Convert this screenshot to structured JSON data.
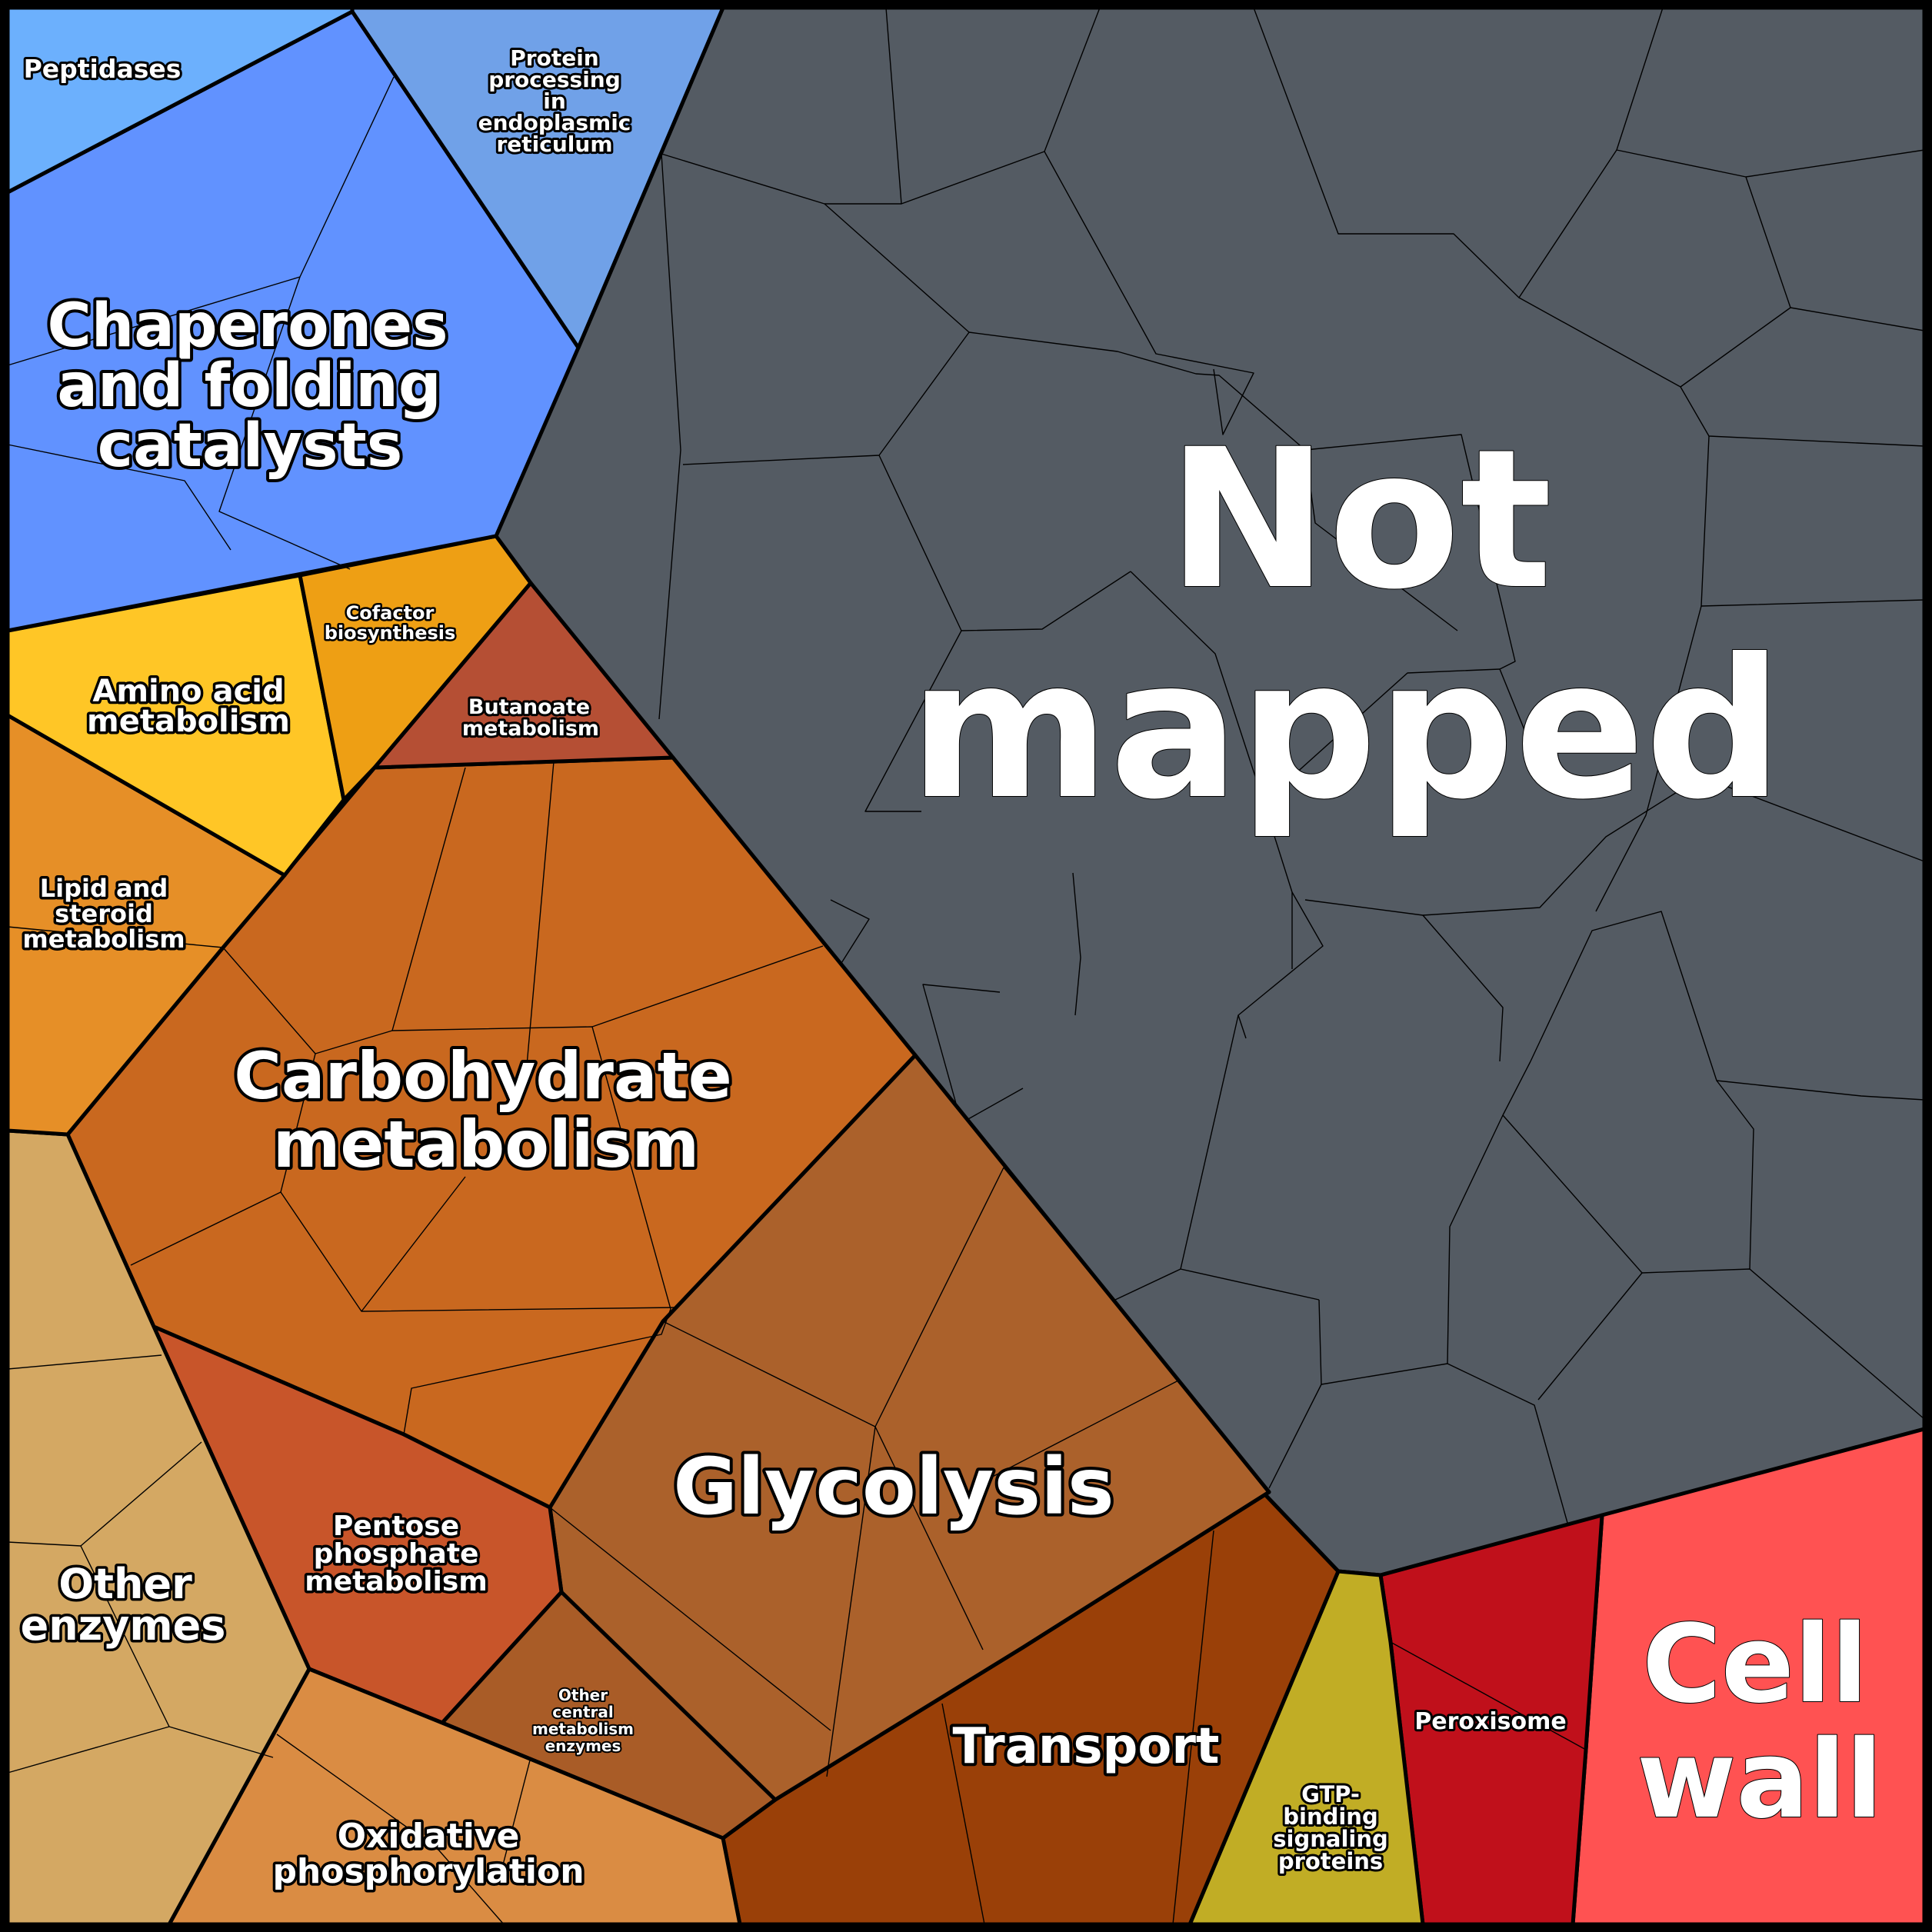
{
  "regions": [
    {
      "id": "not-mapped",
      "label": [
        "Not",
        "mapped"
      ],
      "color": "#545b63"
    },
    {
      "id": "cell-wall",
      "label": [
        "Cell",
        "wall"
      ],
      "color": "#ff5252"
    },
    {
      "id": "peroxisome",
      "label": [
        "Peroxisome"
      ],
      "color": "#c0101b"
    },
    {
      "id": "gtp-binding",
      "label": [
        "GTP-",
        "binding",
        "signaling",
        "proteins"
      ],
      "color": "#c1ad25"
    },
    {
      "id": "transport",
      "label": [
        "Transport"
      ],
      "color": "#9a4008"
    },
    {
      "id": "glycolysis",
      "label": [
        "Glycolysis"
      ],
      "color": "#ab612b"
    },
    {
      "id": "carbohydrate",
      "label": [
        "Carbohydrate",
        "metabolism"
      ],
      "color": "#c9681f"
    },
    {
      "id": "pentose",
      "label": [
        "Pentose",
        "phosphate",
        "metabolism"
      ],
      "color": "#c8552a"
    },
    {
      "id": "other-central",
      "label": [
        "Other",
        "central",
        "metabolism",
        "enzymes"
      ],
      "color": "#a95c27"
    },
    {
      "id": "oxidative",
      "label": [
        "Oxidative",
        "phosphorylation"
      ],
      "color": "#da8c43"
    },
    {
      "id": "other-enzymes",
      "label": [
        "Other",
        "enzymes"
      ],
      "color": "#d4a863"
    },
    {
      "id": "lipid",
      "label": [
        "Lipid and",
        "steroid",
        "metabolism"
      ],
      "color": "#e68f27"
    },
    {
      "id": "amino-acid",
      "label": [
        "Amino acid",
        "metabolism"
      ],
      "color": "#ffc626"
    },
    {
      "id": "cofactor",
      "label": [
        "Cofactor",
        "biosynthesis"
      ],
      "color": "#ee9f14"
    },
    {
      "id": "butanoate",
      "label": [
        "Butanoate",
        "metabolism"
      ],
      "color": "#b54f34"
    },
    {
      "id": "chaperones",
      "label": [
        "Chaperones",
        "and folding",
        "catalysts"
      ],
      "color": "#6192ff"
    },
    {
      "id": "peptidases",
      "label": [
        "Peptidases"
      ],
      "color": "#6cb0fd"
    },
    {
      "id": "protein-er",
      "label": [
        "Protein",
        "processing",
        "in",
        "endoplasmic",
        "reticulum"
      ],
      "color": "#70a1e8"
    }
  ]
}
